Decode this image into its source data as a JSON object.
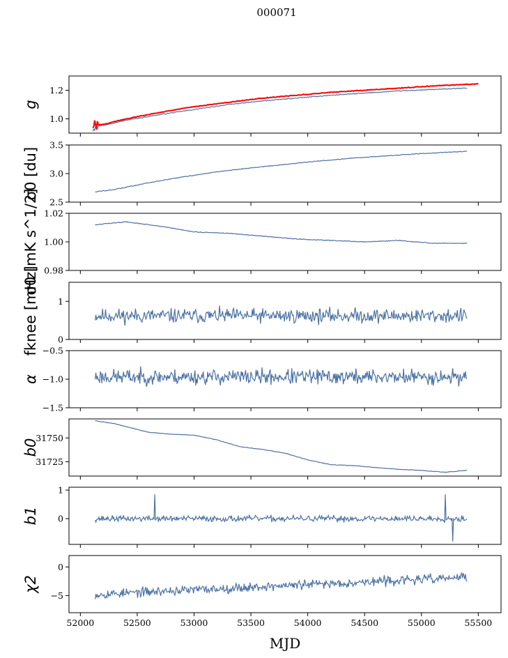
{
  "figure": {
    "suptitle": "000071",
    "xlabel": "MJD"
  },
  "chart_data": [
    {
      "type": "line",
      "panel": "gain",
      "ylabel": "g",
      "ylim": [
        0.9,
        1.3
      ],
      "yticks": [
        1.0,
        1.2
      ],
      "ytick_labels": [
        "1.0",
        "1.2"
      ],
      "xlim": [
        51900,
        55700
      ],
      "xticks": [
        52000,
        52500,
        53000,
        53500,
        54000,
        54500,
        55000,
        55500
      ],
      "series": [
        {
          "color": "#4c72a4",
          "x": [
            52110,
            52200,
            52400,
            52700,
            53000,
            53300,
            53600,
            53900,
            54200,
            54500,
            54800,
            55100,
            55400
          ],
          "y": [
            0.945,
            0.955,
            0.99,
            1.03,
            1.065,
            1.1,
            1.125,
            1.145,
            1.165,
            1.18,
            1.195,
            1.205,
            1.215
          ]
        },
        {
          "color": "#ff0000",
          "x": [
            52110,
            52200,
            52400,
            52700,
            53000,
            53300,
            53600,
            53900,
            54200,
            54500,
            54800,
            55100,
            55500
          ],
          "y": [
            0.96,
            0.96,
            1.0,
            1.045,
            1.085,
            1.115,
            1.145,
            1.165,
            1.185,
            1.2,
            1.215,
            1.23,
            1.245
          ]
        }
      ]
    },
    {
      "type": "line",
      "panel": "sigma0-du",
      "ylabel": "σ0 [du]",
      "ylim": [
        2.5,
        3.5
      ],
      "yticks": [
        2.5,
        3.0,
        3.5
      ],
      "ytick_labels": [
        "2.5",
        "3.0",
        "3.5"
      ],
      "series": [
        {
          "color": "#4c72a4",
          "x": [
            52130,
            52300,
            52600,
            52900,
            53200,
            53500,
            53800,
            54100,
            54400,
            54700,
            55000,
            55400
          ],
          "y": [
            2.68,
            2.72,
            2.84,
            2.94,
            3.03,
            3.1,
            3.16,
            3.22,
            3.27,
            3.31,
            3.35,
            3.39
          ]
        }
      ]
    },
    {
      "type": "line",
      "panel": "sigma0-mk",
      "ylabel": "σ0 [mK s^1/2]",
      "ylim": [
        0.98,
        1.02
      ],
      "yticks": [
        0.98,
        1.0,
        1.02
      ],
      "ytick_labels": [
        "0.98",
        "1.00",
        "1.02"
      ],
      "series": [
        {
          "color": "#4c72a4",
          "x": [
            52130,
            52400,
            52700,
            53000,
            53300,
            53600,
            53900,
            54200,
            54500,
            54800,
            55100,
            55400
          ],
          "y": [
            1.012,
            1.014,
            1.011,
            1.007,
            1.006,
            1.004,
            1.002,
            1.001,
            1.0,
            1.001,
            0.999,
            0.999
          ]
        }
      ]
    },
    {
      "type": "line",
      "panel": "fknee",
      "ylabel": "fknee [mHz]",
      "ylim": [
        0,
        1.5
      ],
      "yticks": [
        0,
        1
      ],
      "ytick_labels": [
        "0",
        "1"
      ],
      "series": [
        {
          "color": "#4c72a4",
          "x_range": [
            52130,
            55400
          ],
          "mean": 0.62,
          "noise": 0.28,
          "n": 500,
          "seed": 11
        }
      ]
    },
    {
      "type": "line",
      "panel": "alpha",
      "ylabel": "α",
      "ylim": [
        -1.5,
        -0.5
      ],
      "yticks": [
        -1.5,
        -1.0,
        -0.5
      ],
      "ytick_labels": [
        "−1.5",
        "−1.0",
        "−0.5"
      ],
      "series": [
        {
          "color": "#4c72a4",
          "x_range": [
            52130,
            55400
          ],
          "mean": -0.96,
          "noise": 0.2,
          "n": 500,
          "seed": 23
        }
      ]
    },
    {
      "type": "line",
      "panel": "b0",
      "ylabel": "b0",
      "ylim": [
        31710,
        31770
      ],
      "yticks": [
        31725,
        31750
      ],
      "ytick_labels": [
        "31725",
        "31750"
      ],
      "series": [
        {
          "color": "#4c72a4",
          "x": [
            52130,
            52300,
            52600,
            52800,
            53000,
            53200,
            53400,
            53600,
            53800,
            54000,
            54200,
            54400,
            54600,
            54800,
            55000,
            55200,
            55400
          ],
          "y": [
            31768,
            31765,
            31756,
            31754,
            31753,
            31748,
            31741,
            31738,
            31734,
            31727,
            31722,
            31721,
            31719,
            31717,
            31716,
            31714,
            31716
          ]
        }
      ]
    },
    {
      "type": "line",
      "panel": "b1",
      "ylabel": "b1",
      "ylim": [
        -0.9,
        1.1
      ],
      "yticks": [
        0,
        1
      ],
      "ytick_labels": [
        "0",
        "1"
      ],
      "series": [
        {
          "color": "#4c72a4",
          "x_range": [
            52130,
            55400
          ],
          "mean": 0.0,
          "noise": 0.16,
          "n": 500,
          "seed": 37
        }
      ]
    },
    {
      "type": "line",
      "panel": "chi2",
      "ylabel": "χ2",
      "ylim": [
        -8,
        2
      ],
      "yticks": [
        -5,
        0
      ],
      "ytick_labels": [
        "−5",
        "0"
      ],
      "series": [
        {
          "color": "#4c72a4",
          "x_range": [
            52130,
            55400
          ],
          "mean_start": -4.8,
          "mean_end": -1.8,
          "noise": 1.2,
          "n": 500,
          "seed": 53
        }
      ]
    }
  ]
}
